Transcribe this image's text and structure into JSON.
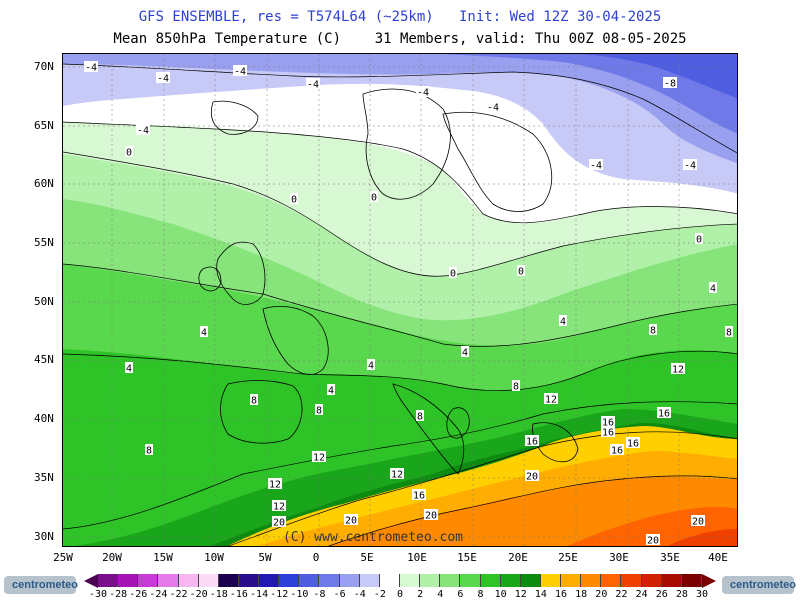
{
  "header": {
    "line1": "GFS ENSEMBLE, res = T574L64 (~25km)   Init: Wed 12Z 30-04-2025",
    "line2": "Mean 850hPa Temperature (C)    31 Members, valid: Thu 00Z 08-05-2025"
  },
  "axes": {
    "lat_labels": [
      "70N",
      "65N",
      "60N",
      "55N",
      "50N",
      "45N",
      "40N",
      "35N",
      "30N"
    ],
    "lon_labels": [
      "25W",
      "20W",
      "15W",
      "10W",
      "5W",
      "0",
      "5E",
      "10E",
      "15E",
      "20E",
      "25E",
      "30E",
      "35E",
      "40E"
    ]
  },
  "watermark": "(C) www.centrometeo.com",
  "contour_labels": [
    "-4",
    "-4",
    "-4",
    "-4",
    "-4",
    "-4",
    "-4",
    "-8",
    "-4",
    "-4",
    "0",
    "0",
    "0",
    "0",
    "0",
    "0",
    "4",
    "4",
    "4",
    "4",
    "4",
    "4",
    "4",
    "8",
    "8",
    "8",
    "8",
    "8",
    "8",
    "8",
    "12",
    "12",
    "12",
    "12",
    "12",
    "12",
    "16",
    "16",
    "16",
    "16",
    "16",
    "16",
    "16",
    "20",
    "20",
    "20",
    "20",
    "20",
    "20"
  ],
  "colorbar": {
    "ticks": [
      "-30",
      "-28",
      "-26",
      "-24",
      "-22",
      "-20",
      "-18",
      "-16",
      "-14",
      "-12",
      "-10",
      "-8",
      "-6",
      "-4",
      "-2",
      "0",
      "2",
      "4",
      "6",
      "8",
      "10",
      "12",
      "14",
      "16",
      "18",
      "20",
      "22",
      "24",
      "26",
      "28",
      "30"
    ],
    "colors": [
      "#4b0052",
      "#7a0e8a",
      "#a514b5",
      "#c83bd6",
      "#e57be8",
      "#f7b8f2",
      "#fbdcf7",
      "#1a004d",
      "#2a0f8c",
      "#2418b3",
      "#2d3fd6",
      "#4f5ee0",
      "#7079e8",
      "#9aa0f0",
      "#c7c9f7",
      "#ffffff",
      "#d8f7d3",
      "#b1f0a8",
      "#86e47a",
      "#5ad84d",
      "#2ec326",
      "#19a61a",
      "#0d8a10",
      "#ffcf00",
      "#ffad00",
      "#ff8a00",
      "#ff6400",
      "#f04000",
      "#d02000",
      "#a80a00",
      "#7a0000"
    ],
    "logo_text": "centrometeo"
  }
}
